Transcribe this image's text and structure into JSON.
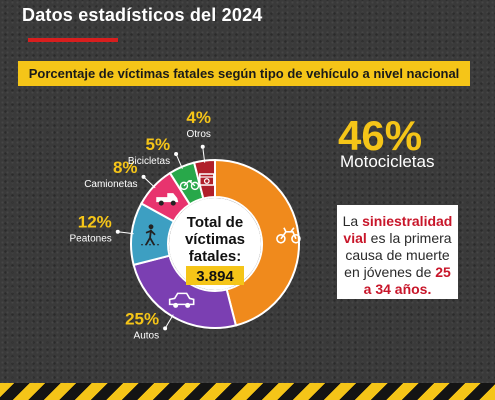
{
  "header": {
    "title": "Datos estadísticos del 2024"
  },
  "subtitle": "Porcentaje de víctimas fatales según tipo de vehículo a nivel nacional",
  "chart_data": {
    "type": "pie",
    "title": "Porcentaje de víctimas fatales según tipo de vehículo a nivel nacional",
    "categories": [
      "Motocicletas",
      "Autos",
      "Peatones",
      "Camionetas",
      "Bicicletas",
      "Otros"
    ],
    "values": [
      46,
      25,
      12,
      8,
      5,
      4
    ],
    "labels": [
      "46%",
      "25%",
      "12%",
      "8%",
      "5%",
      "4%"
    ],
    "colors": [
      "#f08a1c",
      "#7b3fb2",
      "#3d9fc2",
      "#e8336e",
      "#28a84a",
      "#b11f2a"
    ],
    "icons": [
      "motorcycle-icon",
      "car-icon",
      "pedestrian-icon",
      "pickup-icon",
      "bicycle-icon",
      "other-vehicle-icon"
    ]
  },
  "center": {
    "line1": "Total de",
    "line2": "víctimas",
    "line3": "fatales:",
    "total": "3.894"
  },
  "callout": {
    "t1": "La ",
    "h1": "siniestralidad vial",
    "t2": " es la primera causa de muerte en jóvenes de ",
    "h2": "25 a 34 años."
  }
}
